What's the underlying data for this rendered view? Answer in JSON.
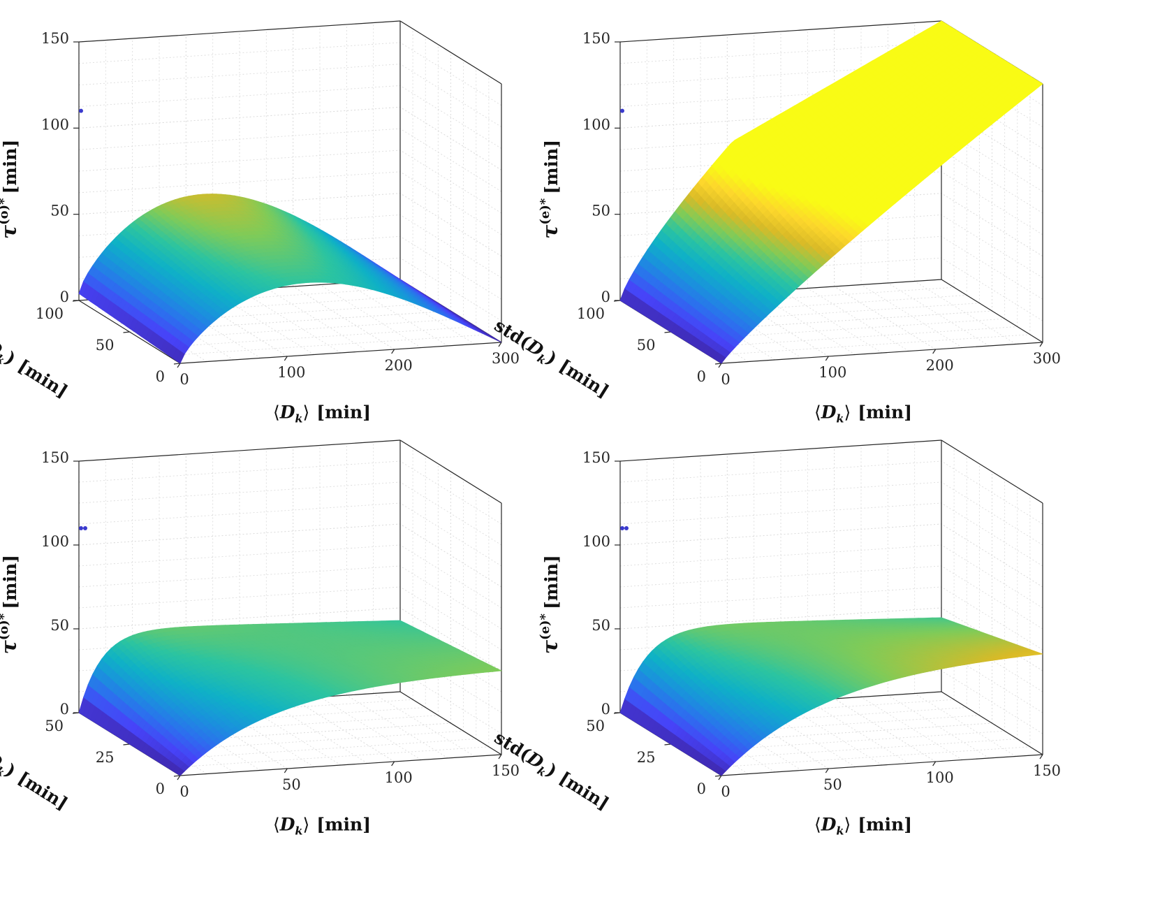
{
  "figure": {
    "colors": {
      "axis": "#262626",
      "grid": "#dcdcdc",
      "colormap_parula": [
        "#3e26a8",
        "#4743f8",
        "#2c70ee",
        "#1994db",
        "#0fb1c6",
        "#2cc4a0",
        "#80cb58",
        "#d9ba27",
        "#fdd72c",
        "#f9fb15"
      ],
      "marker": "#3a3acd"
    }
  },
  "chart_data": [
    {
      "id": "top-left",
      "type": "scatter3d-surface",
      "zlabel": "τ^(o)* [min]",
      "zlabel_base": "τ",
      "zlabel_sup": "(o)*",
      "zlabel_unit": "[min]",
      "xlabel": "⟨D_k⟩ [min]",
      "xlabel_parts": [
        "⟨",
        "D",
        "k",
        "⟩",
        "[min]"
      ],
      "ylabel": "std(D_k) [min]",
      "ylabel_parts": [
        "std(",
        "D",
        "k",
        ")",
        "[min]"
      ],
      "xlim": [
        0,
        300
      ],
      "ylim": [
        0,
        100
      ],
      "zlim": [
        0,
        150
      ],
      "xticks": [
        0,
        100,
        200,
        300
      ],
      "yticks": [
        0,
        50,
        100
      ],
      "zticks": [
        0,
        50,
        100,
        150
      ],
      "shape": "arch",
      "params": {
        "peak_x": 80,
        "peak_z": 62,
        "ridge_drop": 20
      },
      "outlier": {
        "x": 0,
        "y": 100,
        "z": 110,
        "count": 1
      },
      "grid": true
    },
    {
      "id": "top-right",
      "type": "scatter3d-surface",
      "zlabel": "τ^(e)* [min]",
      "zlabel_base": "τ",
      "zlabel_sup": "(e)*",
      "zlabel_unit": "[min]",
      "xlabel": "⟨D_k⟩ [min]",
      "xlabel_parts": [
        "⟨",
        "D",
        "k",
        "⟩",
        "[min]"
      ],
      "ylabel": "std(D_k) [min]",
      "ylabel_parts": [
        "std(",
        "D",
        "k",
        ")",
        "[min]"
      ],
      "xlim": [
        0,
        300
      ],
      "ylim": [
        0,
        100
      ],
      "zlim": [
        0,
        150
      ],
      "xticks": [
        0,
        100,
        200,
        300
      ],
      "yticks": [
        0,
        50,
        100
      ],
      "zticks": [
        0,
        50,
        100,
        150
      ],
      "shape": "ramp",
      "params": {
        "front_z_end": 150,
        "back_z_start": 88
      },
      "outlier": {
        "x": 0,
        "y": 100,
        "z": 110,
        "count": 1
      },
      "grid": true
    },
    {
      "id": "bottom-left",
      "type": "scatter3d-surface",
      "zlabel": "τ^(o)* [min]",
      "zlabel_base": "τ",
      "zlabel_sup": "(o)*",
      "zlabel_unit": "[min]",
      "xlabel": "⟨D_k⟩ [min]",
      "xlabel_parts": [
        "⟨",
        "D",
        "k",
        "⟩",
        "[min]"
      ],
      "ylabel": "std(D_k) [min]",
      "ylabel_parts": [
        "std(",
        "D",
        "k",
        ")",
        "[min]"
      ],
      "xlim": [
        0,
        150
      ],
      "ylim": [
        0,
        50
      ],
      "zlim": [
        0,
        150
      ],
      "xticks": [
        0,
        50,
        100,
        150
      ],
      "yticks": [
        0,
        25,
        50
      ],
      "zticks": [
        0,
        50,
        100,
        150
      ],
      "shape": "saturate",
      "params": {
        "front_z_end": 50,
        "back_z_start": 50,
        "k": 3.5
      },
      "outlier": {
        "x": 0,
        "y": 50,
        "z": 110,
        "count": 2
      },
      "grid": true
    },
    {
      "id": "bottom-right",
      "type": "scatter3d-surface",
      "zlabel": "τ^(e)* [min]",
      "zlabel_base": "τ",
      "zlabel_sup": "(e)*",
      "zlabel_unit": "[min]",
      "xlabel": "⟨D_k⟩ [min]",
      "xlabel_parts": [
        "⟨",
        "D",
        "k",
        "⟩",
        "[min]"
      ],
      "ylabel": "std(D_k) [min]",
      "ylabel_parts": [
        "std(",
        "D",
        "k",
        ")",
        "[min]"
      ],
      "xlim": [
        0,
        150
      ],
      "ylim": [
        0,
        50
      ],
      "zlim": [
        0,
        150
      ],
      "xticks": [
        0,
        50,
        100,
        150
      ],
      "yticks": [
        0,
        25,
        50
      ],
      "zticks": [
        0,
        50,
        100,
        150
      ],
      "shape": "saturate",
      "params": {
        "front_z_end": 60,
        "back_z_start": 52,
        "k": 3.0
      },
      "outlier": {
        "x": 0,
        "y": 50,
        "z": 110,
        "count": 2
      },
      "grid": true
    }
  ]
}
